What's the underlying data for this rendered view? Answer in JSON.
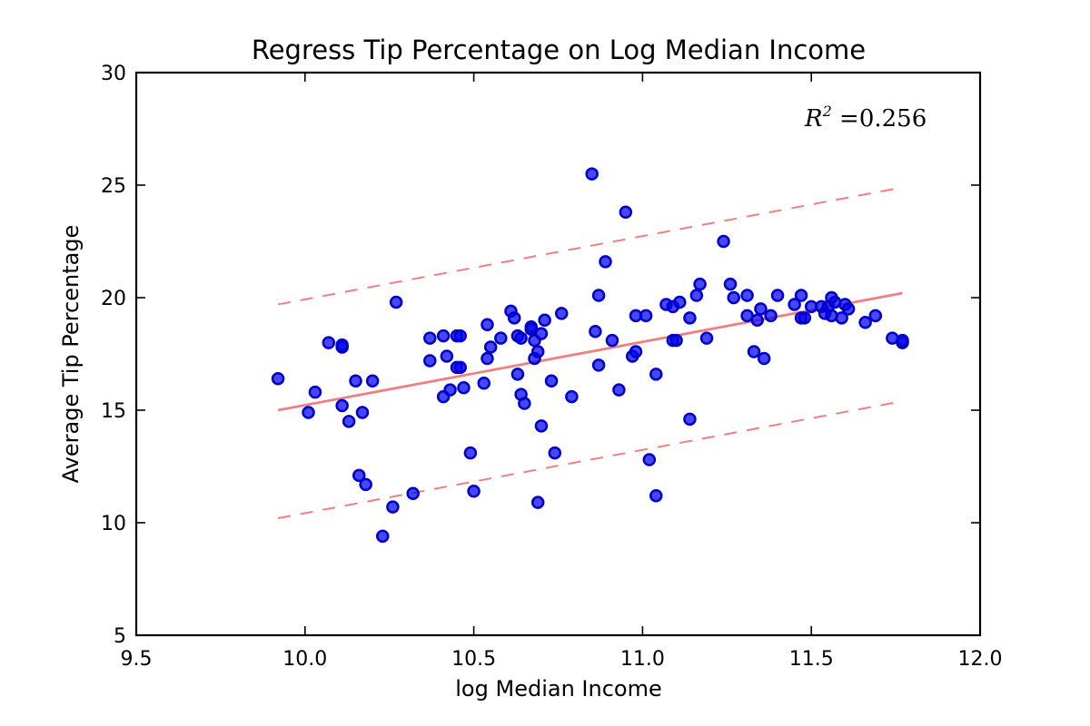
{
  "chart_data": {
    "type": "scatter",
    "title": "Regress Tip Percentage on Log Median Income",
    "xlabel": "log Median Income",
    "ylabel": "Average Tip Percentage",
    "xlim": [
      9.5,
      12.0
    ],
    "ylim": [
      5,
      30
    ],
    "xticks": [
      "9.5",
      "10.0",
      "10.5",
      "11.0",
      "11.5",
      "12.0"
    ],
    "yticks": [
      "5",
      "10",
      "15",
      "20",
      "25",
      "30"
    ],
    "annotation": {
      "prefix": "R",
      "superscript": "2",
      "equals": " =",
      "value": "0.256"
    },
    "grid": false,
    "point_color": "#0000ee",
    "fit_color": "#f08080",
    "fit_line": {
      "x": [
        9.92,
        11.77
      ],
      "y": [
        15.0,
        20.2
      ]
    },
    "band_upper": {
      "x": [
        9.92,
        11.77
      ],
      "y": [
        19.7,
        24.9
      ]
    },
    "band_lower": {
      "x": [
        9.92,
        11.77
      ],
      "y": [
        10.2,
        15.4
      ]
    },
    "points": [
      [
        9.92,
        16.4
      ],
      [
        10.01,
        14.9
      ],
      [
        10.03,
        15.8
      ],
      [
        10.07,
        18.0
      ],
      [
        10.11,
        17.8
      ],
      [
        10.11,
        17.9
      ],
      [
        10.11,
        15.2
      ],
      [
        10.13,
        14.5
      ],
      [
        10.15,
        16.3
      ],
      [
        10.16,
        12.1
      ],
      [
        10.17,
        14.9
      ],
      [
        10.18,
        11.7
      ],
      [
        10.2,
        16.3
      ],
      [
        10.23,
        9.4
      ],
      [
        10.26,
        10.7
      ],
      [
        10.27,
        19.8
      ],
      [
        10.32,
        11.3
      ],
      [
        10.37,
        18.2
      ],
      [
        10.37,
        17.2
      ],
      [
        10.41,
        18.3
      ],
      [
        10.41,
        15.6
      ],
      [
        10.42,
        17.4
      ],
      [
        10.43,
        15.9
      ],
      [
        10.45,
        18.3
      ],
      [
        10.45,
        16.9
      ],
      [
        10.46,
        18.3
      ],
      [
        10.46,
        16.9
      ],
      [
        10.47,
        16.0
      ],
      [
        10.49,
        13.1
      ],
      [
        10.5,
        11.4
      ],
      [
        10.53,
        16.2
      ],
      [
        10.54,
        18.8
      ],
      [
        10.54,
        17.3
      ],
      [
        10.55,
        17.8
      ],
      [
        10.58,
        18.2
      ],
      [
        10.61,
        19.4
      ],
      [
        10.62,
        19.1
      ],
      [
        10.63,
        18.3
      ],
      [
        10.63,
        16.6
      ],
      [
        10.64,
        18.2
      ],
      [
        10.64,
        15.7
      ],
      [
        10.65,
        15.3
      ],
      [
        10.67,
        18.7
      ],
      [
        10.67,
        18.6
      ],
      [
        10.68,
        18.1
      ],
      [
        10.68,
        17.3
      ],
      [
        10.69,
        17.6
      ],
      [
        10.69,
        10.9
      ],
      [
        10.7,
        18.4
      ],
      [
        10.7,
        14.3
      ],
      [
        10.71,
        19.0
      ],
      [
        10.73,
        16.3
      ],
      [
        10.74,
        13.1
      ],
      [
        10.76,
        19.3
      ],
      [
        10.79,
        15.6
      ],
      [
        10.85,
        25.5
      ],
      [
        10.86,
        18.5
      ],
      [
        10.87,
        17.0
      ],
      [
        10.87,
        20.1
      ],
      [
        10.89,
        21.6
      ],
      [
        10.91,
        18.1
      ],
      [
        10.93,
        15.9
      ],
      [
        10.95,
        23.8
      ],
      [
        10.97,
        17.4
      ],
      [
        10.98,
        19.2
      ],
      [
        10.98,
        17.6
      ],
      [
        11.01,
        19.2
      ],
      [
        11.02,
        12.8
      ],
      [
        11.04,
        16.6
      ],
      [
        11.04,
        11.2
      ],
      [
        11.07,
        19.7
      ],
      [
        11.09,
        19.6
      ],
      [
        11.09,
        18.1
      ],
      [
        11.1,
        18.1
      ],
      [
        11.11,
        19.8
      ],
      [
        11.14,
        19.1
      ],
      [
        11.14,
        14.6
      ],
      [
        11.16,
        20.1
      ],
      [
        11.17,
        20.6
      ],
      [
        11.19,
        18.2
      ],
      [
        11.24,
        22.5
      ],
      [
        11.26,
        20.6
      ],
      [
        11.27,
        20.0
      ],
      [
        11.31,
        20.1
      ],
      [
        11.31,
        19.2
      ],
      [
        11.33,
        17.6
      ],
      [
        11.34,
        19.0
      ],
      [
        11.35,
        19.5
      ],
      [
        11.36,
        17.3
      ],
      [
        11.38,
        19.2
      ],
      [
        11.4,
        20.1
      ],
      [
        11.45,
        19.7
      ],
      [
        11.47,
        20.1
      ],
      [
        11.47,
        19.1
      ],
      [
        11.48,
        19.1
      ],
      [
        11.5,
        19.6
      ],
      [
        11.53,
        19.6
      ],
      [
        11.54,
        19.3
      ],
      [
        11.55,
        19.6
      ],
      [
        11.56,
        20.0
      ],
      [
        11.56,
        19.2
      ],
      [
        11.57,
        19.8
      ],
      [
        11.59,
        19.1
      ],
      [
        11.6,
        19.7
      ],
      [
        11.61,
        19.5
      ],
      [
        11.66,
        18.9
      ],
      [
        11.69,
        19.2
      ],
      [
        11.74,
        18.2
      ],
      [
        11.77,
        18.0
      ],
      [
        11.77,
        18.1
      ]
    ]
  }
}
